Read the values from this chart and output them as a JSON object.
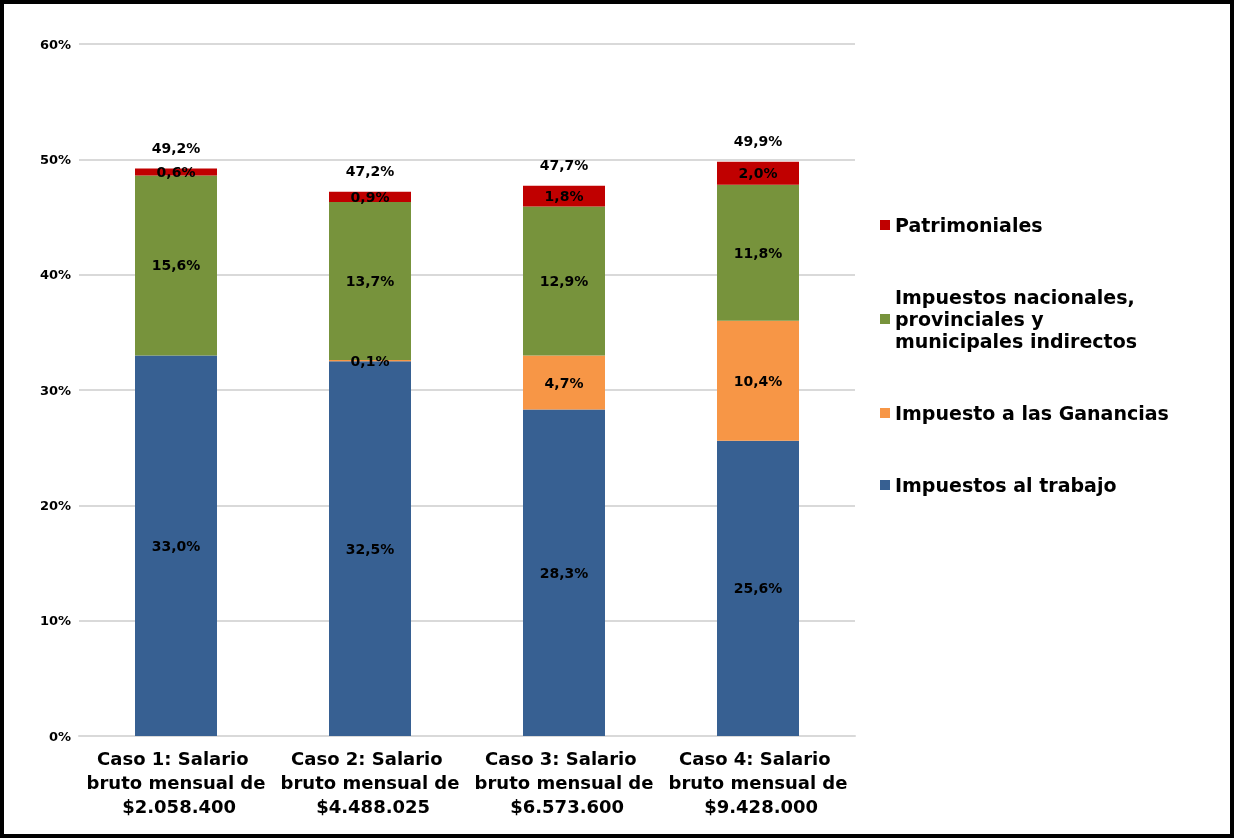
{
  "chart_data": {
    "type": "bar",
    "stacked": true,
    "categories": [
      "Caso 1: Salario bruto mensual de $2.058.400",
      "Caso 2: Salario bruto mensual de $4.488.025",
      "Caso 3: Salario bruto mensual de $6.573.600",
      "Caso 4: Salario bruto mensual de $9.428.000"
    ],
    "series": [
      {
        "name": "Impuestos al trabajo",
        "color": "#376092",
        "values": [
          33.0,
          32.5,
          28.3,
          25.6
        ],
        "value_labels": [
          "33,0%",
          "32,5%",
          "28,3%",
          "25,6%"
        ]
      },
      {
        "name": "Impuesto a las Ganancias",
        "color": "#f79646",
        "values": [
          null,
          0.1,
          4.7,
          10.4
        ],
        "value_labels": [
          null,
          "0,1%",
          "4,7%",
          "10,4%"
        ]
      },
      {
        "name": "Impuestos nacionales, provinciales y municipales indirectos",
        "color": "#77933c",
        "values": [
          15.6,
          13.7,
          12.9,
          11.8
        ],
        "value_labels": [
          "15,6%",
          "13,7%",
          "12,9%",
          "11,8%"
        ]
      },
      {
        "name": "Patrimoniales",
        "color": "#c00000",
        "values": [
          0.6,
          0.9,
          1.8,
          2.0
        ],
        "value_labels": [
          "0,6%",
          "0,9%",
          "1,8%",
          "2,0%"
        ]
      }
    ],
    "totals": [
      "49,2%",
      "47,2%",
      "47,7%",
      "49,9%"
    ],
    "ylim": [
      0,
      60
    ],
    "yticks": [
      {
        "value": 0,
        "label": "0%"
      },
      {
        "value": 10,
        "label": "10%"
      },
      {
        "value": 20,
        "label": "20%"
      },
      {
        "value": 30,
        "label": "30%"
      },
      {
        "value": 40,
        "label": "40%"
      },
      {
        "value": 50,
        "label": "50%"
      },
      {
        "value": 60,
        "label": "60%"
      }
    ],
    "grid": "y",
    "legend": "right"
  }
}
